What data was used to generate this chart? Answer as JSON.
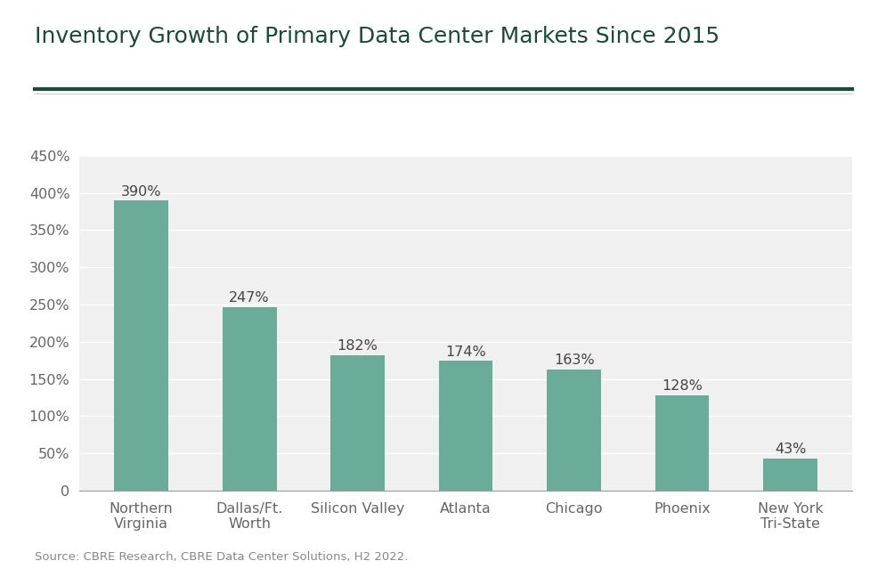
{
  "title": "Inventory Growth of Primary Data Center Markets Since 2015",
  "categories": [
    "Northern\nVirginia",
    "Dallas/Ft.\nWorth",
    "Silicon Valley",
    "Atlanta",
    "Chicago",
    "Phoenix",
    "New York\nTri-State"
  ],
  "values": [
    390,
    247,
    182,
    174,
    163,
    128,
    43
  ],
  "bar_color": "#6aab99",
  "outer_bg": "#ffffff",
  "inner_bg": "#f0f0f0",
  "title_color": "#1a4a3a",
  "separator_color": "#1a4a3a",
  "tick_label_color": "#666666",
  "value_label_color": "#444444",
  "grid_color": "#ffffff",
  "source_text": "Source: CBRE Research, CBRE Data Center Solutions, H2 2022.",
  "ylim": [
    0,
    450
  ],
  "yticks": [
    0,
    50,
    100,
    150,
    200,
    250,
    300,
    350,
    400,
    450
  ],
  "title_fontsize": 18,
  "tick_fontsize": 11.5,
  "value_fontsize": 11.5,
  "source_fontsize": 9.5,
  "bar_width": 0.5
}
